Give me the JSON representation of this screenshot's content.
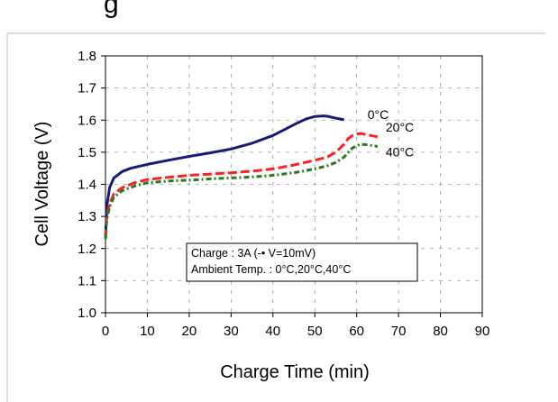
{
  "heading_fragment": "g",
  "chart_data": {
    "type": "line",
    "title": "",
    "xlabel": "Charge Time (min)",
    "ylabel": "Cell Voltage (V)",
    "xlim": [
      0,
      90
    ],
    "ylim": [
      1.0,
      1.8
    ],
    "x_ticks": [
      "0",
      "10",
      "20",
      "30",
      "40",
      "50",
      "60",
      "70",
      "80",
      "90"
    ],
    "y_ticks": [
      "1.0",
      "1.1",
      "1.2",
      "1.3",
      "1.4",
      "1.5",
      "1.6",
      "1.7",
      "1.8"
    ],
    "grid": true,
    "legend": "inline-labels",
    "series": [
      {
        "name": "0°C",
        "color": "#1a1a7a",
        "style": "solid",
        "points": [
          [
            0,
            1.23
          ],
          [
            0.3,
            1.33
          ],
          [
            1,
            1.39
          ],
          [
            2,
            1.42
          ],
          [
            4,
            1.44
          ],
          [
            6,
            1.45
          ],
          [
            10,
            1.462
          ],
          [
            15,
            1.475
          ],
          [
            20,
            1.487
          ],
          [
            25,
            1.498
          ],
          [
            30,
            1.51
          ],
          [
            35,
            1.528
          ],
          [
            40,
            1.552
          ],
          [
            43,
            1.572
          ],
          [
            46,
            1.592
          ],
          [
            48,
            1.604
          ],
          [
            50,
            1.611
          ],
          [
            52,
            1.613
          ],
          [
            53,
            1.612
          ],
          [
            55,
            1.606
          ],
          [
            57,
            1.601
          ]
        ]
      },
      {
        "name": "20°C",
        "color": "#ff2020",
        "style": "dashed",
        "points": [
          [
            0,
            1.23
          ],
          [
            0.3,
            1.3
          ],
          [
            1,
            1.34
          ],
          [
            2,
            1.37
          ],
          [
            4,
            1.39
          ],
          [
            7,
            1.405
          ],
          [
            10,
            1.415
          ],
          [
            15,
            1.422
          ],
          [
            20,
            1.428
          ],
          [
            25,
            1.432
          ],
          [
            30,
            1.436
          ],
          [
            35,
            1.441
          ],
          [
            40,
            1.448
          ],
          [
            45,
            1.46
          ],
          [
            50,
            1.475
          ],
          [
            53,
            1.485
          ],
          [
            55,
            1.5
          ],
          [
            57,
            1.525
          ],
          [
            58,
            1.543
          ],
          [
            59,
            1.552
          ],
          [
            60,
            1.557
          ],
          [
            61,
            1.558
          ],
          [
            63,
            1.553
          ],
          [
            65,
            1.548
          ]
        ]
      },
      {
        "name": "40°C",
        "color": "#2a7a1a",
        "style": "dashdot",
        "points": [
          [
            0,
            1.23
          ],
          [
            0.3,
            1.29
          ],
          [
            1,
            1.33
          ],
          [
            2,
            1.36
          ],
          [
            4,
            1.38
          ],
          [
            7,
            1.395
          ],
          [
            10,
            1.405
          ],
          [
            15,
            1.41
          ],
          [
            20,
            1.413
          ],
          [
            25,
            1.417
          ],
          [
            30,
            1.42
          ],
          [
            35,
            1.423
          ],
          [
            40,
            1.428
          ],
          [
            45,
            1.436
          ],
          [
            50,
            1.448
          ],
          [
            53,
            1.458
          ],
          [
            55,
            1.468
          ],
          [
            57,
            1.485
          ],
          [
            58,
            1.5
          ],
          [
            59,
            1.513
          ],
          [
            60,
            1.52
          ],
          [
            61,
            1.525
          ],
          [
            63,
            1.522
          ],
          [
            65,
            1.518
          ]
        ]
      }
    ],
    "series_labels": [
      "0°C",
      "20°C",
      "40°C"
    ],
    "annotation": {
      "line1": "Charge : 3A (-• V=10mV)",
      "line2": "Ambient Temp. : 0°C,20°C,40°C"
    }
  }
}
